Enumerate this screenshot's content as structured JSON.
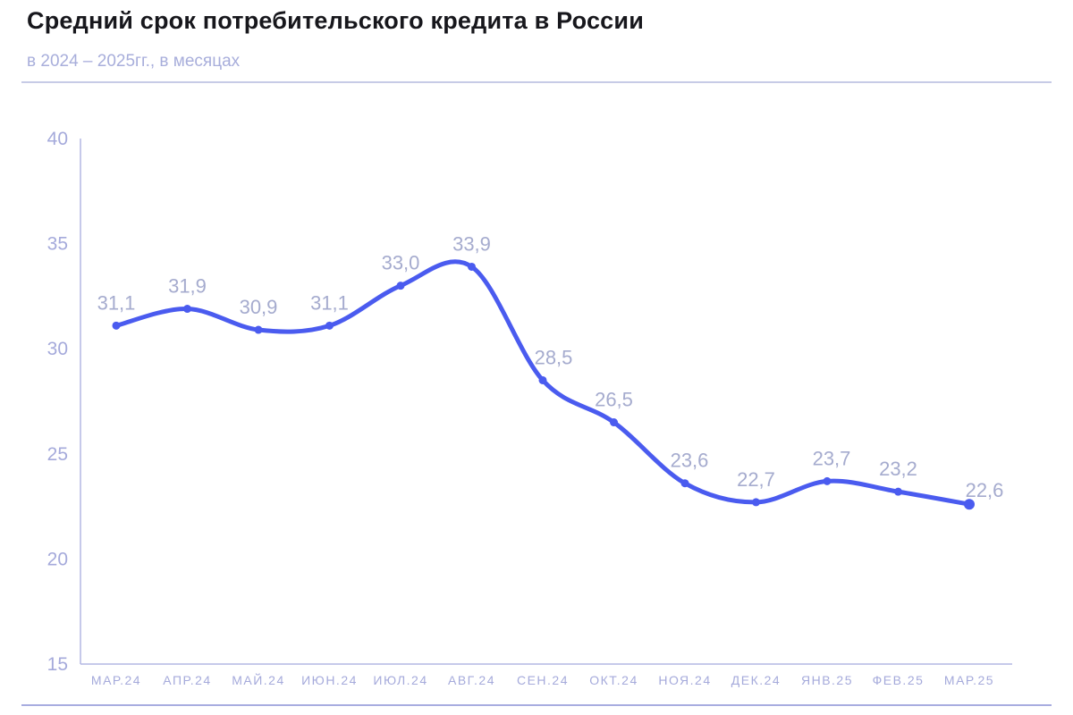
{
  "header": {
    "title": "Средний срок потребительского кредита в России",
    "subtitle": "в 2024 – 2025гг., в месяцах"
  },
  "colors": {
    "line": "#4a5bef",
    "marker": "#4a5bef",
    "axis": "#b3b7e3",
    "axis_text": "#a5aadb",
    "data_label": "#a5abce",
    "title": "#17171c",
    "subtitle": "#a8aedb",
    "divider_top": "#c7cbe6",
    "divider_bottom": "#a8ade0",
    "background": "#ffffff"
  },
  "chart_data": {
    "type": "line",
    "title": "Средний срок потребительского кредита в России",
    "subtitle": "в 2024 – 2025гг., в месяцах",
    "categories": [
      "МАР.24",
      "АПР.24",
      "МАЙ.24",
      "ИЮН.24",
      "ИЮЛ.24",
      "АВГ.24",
      "СЕН.24",
      "ОКТ.24",
      "НОЯ.24",
      "ДЕК.24",
      "ЯНВ.25",
      "ФЕВ.25",
      "МАР.25"
    ],
    "values": [
      31.1,
      31.9,
      30.9,
      31.1,
      33.0,
      33.9,
      28.5,
      26.5,
      23.6,
      22.7,
      23.7,
      23.2,
      22.6
    ],
    "point_labels": [
      "31,1",
      "31,9",
      "30,9",
      "31,1",
      "33,0",
      "33,9",
      "28,5",
      "26,5",
      "23,6",
      "22,7",
      "23,7",
      "23,2",
      "22,6"
    ],
    "ylim": [
      15,
      40
    ],
    "yticks": [
      15,
      20,
      25,
      30,
      35,
      40
    ],
    "xlabel": "",
    "ylabel": "",
    "grid": false,
    "legend": "none",
    "smooth": true,
    "label_dx": [
      0,
      0,
      0,
      0,
      0,
      0,
      12,
      0,
      5,
      0,
      5,
      0,
      17
    ],
    "label_dy": [
      -18,
      -18,
      -18,
      -18,
      -18,
      -18,
      -18,
      -18,
      -18,
      -18,
      -18,
      -18,
      -8
    ]
  }
}
